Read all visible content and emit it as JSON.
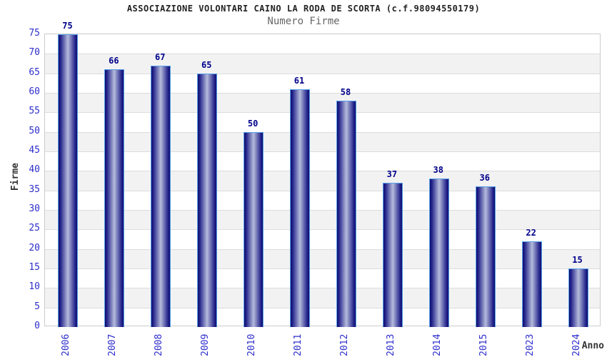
{
  "chart_data": {
    "type": "bar",
    "title": "ASSOCIAZIONE VOLONTARI CAINO LA RODA DE SCORTA (c.f.98094550179)",
    "subtitle": "Numero Firme",
    "categories": [
      "2006",
      "2007",
      "2008",
      "2009",
      "2010",
      "2011",
      "2012",
      "2013",
      "2014",
      "2015",
      "2023",
      "2024"
    ],
    "values": [
      75,
      66,
      67,
      65,
      50,
      61,
      58,
      37,
      38,
      36,
      22,
      15
    ],
    "xlabel": "Anno",
    "ylabel": "Firme",
    "ylim": [
      0,
      75
    ],
    "ytick_step": 5,
    "grid": true,
    "legend_position": "none",
    "colors": {
      "bar_edge": "#0f0f6e",
      "bar_mid": "#22228a",
      "bar_center": "#b5bbdc",
      "bar_border": "#57a0e8",
      "value_label": "#00008b",
      "tick_label": "#2e2ecc",
      "band": "#f2f2f2",
      "grid": "#dcdcdc",
      "title": "#222222",
      "subtitle": "#666666",
      "axis_label": "#333333"
    }
  }
}
